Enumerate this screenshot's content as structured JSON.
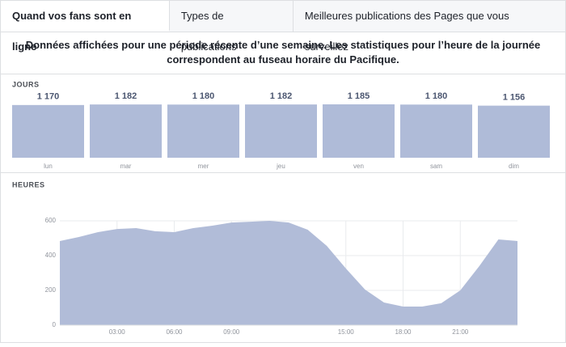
{
  "tabs": [
    "Quand vos fans sont en ligne",
    "Types de publications",
    "Meilleures publications des Pages que vous surveillez"
  ],
  "notice": "Données affichées pour une période récente d’une semaine. Les statistiques pour l’heure de la journée correspondent au fuseau horaire du Pacifique.",
  "chart_data": [
    {
      "type": "bar",
      "title": "JOURS",
      "categories": [
        "lun",
        "mar",
        "mer",
        "jeu",
        "ven",
        "sam",
        "dim"
      ],
      "values": [
        1170,
        1182,
        1180,
        1182,
        1185,
        1180,
        1156
      ],
      "value_labels": [
        "1 170",
        "1 182",
        "1 180",
        "1 182",
        "1 185",
        "1 180",
        "1 156"
      ],
      "color": "#afbbd8"
    },
    {
      "type": "area",
      "title": "HEURES",
      "x": [
        0,
        1,
        2,
        3,
        4,
        5,
        6,
        7,
        8,
        9,
        10,
        11,
        12,
        13,
        14,
        15,
        16,
        17,
        18,
        19,
        20,
        21,
        22,
        23,
        24
      ],
      "values": [
        484,
        507,
        535,
        553,
        558,
        540,
        535,
        558,
        572,
        590,
        595,
        600,
        590,
        549,
        456,
        326,
        205,
        130,
        107,
        107,
        126,
        200,
        340,
        493,
        484
      ],
      "color": "#b1bcd8",
      "xlim": [
        0,
        24
      ],
      "xticks": [
        {
          "value": 3,
          "label": "03:00"
        },
        {
          "value": 6,
          "label": "06:00"
        },
        {
          "value": 9,
          "label": "09:00"
        },
        {
          "value": 15,
          "label": "15:00"
        },
        {
          "value": 18,
          "label": "18:00"
        },
        {
          "value": 21,
          "label": "21:00"
        }
      ],
      "ylim": [
        0,
        600
      ],
      "yticks": [
        0,
        200,
        400,
        600
      ],
      "grid": true
    }
  ]
}
